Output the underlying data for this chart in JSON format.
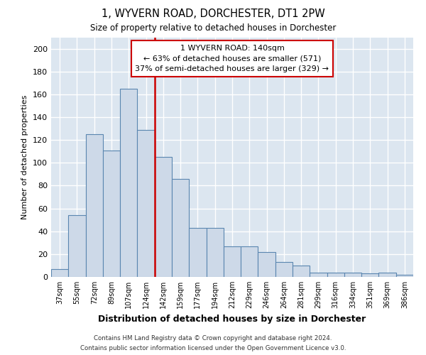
{
  "title": "1, WYVERN ROAD, DORCHESTER, DT1 2PW",
  "subtitle": "Size of property relative to detached houses in Dorchester",
  "xlabel": "Distribution of detached houses by size in Dorchester",
  "ylabel": "Number of detached properties",
  "bar_color": "#cdd9e8",
  "bar_edge_color": "#5a86b0",
  "background_color": "#dce6f0",
  "grid_color": "#ffffff",
  "categories": [
    "37sqm",
    "55sqm",
    "72sqm",
    "89sqm",
    "107sqm",
    "124sqm",
    "142sqm",
    "159sqm",
    "177sqm",
    "194sqm",
    "212sqm",
    "229sqm",
    "246sqm",
    "264sqm",
    "281sqm",
    "299sqm",
    "316sqm",
    "334sqm",
    "351sqm",
    "369sqm",
    "386sqm"
  ],
  "values": [
    7,
    54,
    125,
    111,
    165,
    129,
    105,
    86,
    43,
    43,
    27,
    27,
    22,
    13,
    10,
    4,
    4,
    4,
    3,
    4,
    2
  ],
  "property_line_color": "#cc0000",
  "annotation_title": "1 WYVERN ROAD: 140sqm",
  "annotation_line1": "← 63% of detached houses are smaller (571)",
  "annotation_line2": "37% of semi-detached houses are larger (329) →",
  "annotation_box_color": "#cc0000",
  "ylim": [
    0,
    210
  ],
  "yticks": [
    0,
    20,
    40,
    60,
    80,
    100,
    120,
    140,
    160,
    180,
    200
  ],
  "footnote1": "Contains HM Land Registry data © Crown copyright and database right 2024.",
  "footnote2": "Contains public sector information licensed under the Open Government Licence v3.0."
}
